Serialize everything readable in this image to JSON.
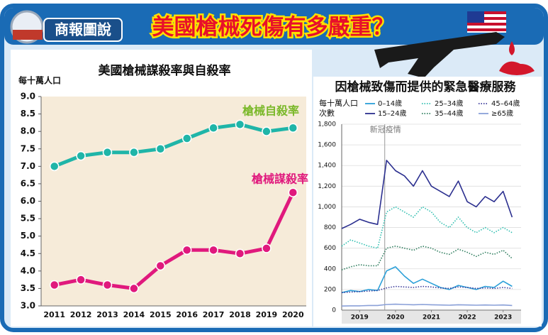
{
  "header": {
    "badge": "商報圖說",
    "title": "美國槍械死傷有多嚴重？"
  },
  "chart_data": [
    {
      "type": "line",
      "title": "美國槍械謀殺率與自殺率",
      "ylabel": "每十萬人口",
      "categories": [
        "2011",
        "2012",
        "2013",
        "2014",
        "2015",
        "2016",
        "2017",
        "2018",
        "2019",
        "2020"
      ],
      "series": [
        {
          "name": "槍械自殺率",
          "color": "#1fb5a8",
          "label_color": "#7ab829",
          "values": [
            7.0,
            7.3,
            7.4,
            7.4,
            7.5,
            7.8,
            8.1,
            8.2,
            8.0,
            8.1
          ]
        },
        {
          "name": "槍械謀殺率",
          "color": "#e0197d",
          "label_color": "#e0197d",
          "values": [
            3.6,
            3.75,
            3.6,
            3.5,
            4.15,
            4.6,
            4.6,
            4.5,
            4.65,
            6.25
          ]
        }
      ],
      "ylim": [
        3,
        9
      ],
      "yticks": [
        {
          "value": 3,
          "label": "3.0"
        },
        3.5,
        {
          "value": 4,
          "label": "4.0"
        },
        4.5,
        {
          "value": 5,
          "label": "5.0"
        },
        5.5,
        {
          "value": 6,
          "label": "6.0"
        },
        6.5,
        {
          "value": 7,
          "label": "7.0"
        },
        7.5,
        {
          "value": 8,
          "label": "8.0"
        },
        8.5,
        {
          "value": 9,
          "label": "9.0"
        }
      ],
      "grid": false
    },
    {
      "type": "line",
      "title": "因槍械致傷而提供的緊急醫療服務",
      "ylabel": [
        "每十萬人口",
        "次數"
      ],
      "x": [
        2019,
        2019.25,
        2019.5,
        2019.75,
        2020,
        2020.25,
        2020.5,
        2020.75,
        2021,
        2021.25,
        2021.5,
        2021.75,
        2022,
        2022.25,
        2022.5,
        2022.75,
        2023,
        2023.25,
        2023.5,
        2023.75
      ],
      "xlim": [
        2019,
        2024
      ],
      "xticks": [
        {
          "value": 2019.5,
          "label": "2019"
        },
        {
          "value": 2020.5,
          "label": "2020"
        },
        {
          "value": 2021.5,
          "label": "2021"
        },
        {
          "value": 2022.5,
          "label": "2022"
        },
        {
          "value": 2023.5,
          "label": "2023"
        }
      ],
      "series": [
        {
          "name": "0–14歲",
          "color": "#2a9fd8",
          "dash": false,
          "values": [
            170,
            190,
            180,
            200,
            190,
            380,
            420,
            330,
            260,
            300,
            260,
            220,
            200,
            240,
            220,
            200,
            230,
            220,
            280,
            230
          ]
        },
        {
          "name": "15–24歲",
          "color": "#2b2f8f",
          "dash": false,
          "values": [
            790,
            830,
            880,
            850,
            830,
            1450,
            1350,
            1300,
            1200,
            1350,
            1200,
            1150,
            1100,
            1250,
            1050,
            1000,
            1100,
            1050,
            1150,
            900
          ]
        },
        {
          "name": "25–34歲",
          "color": "#2fbfb0",
          "dash": true,
          "values": [
            620,
            680,
            650,
            620,
            600,
            950,
            1000,
            950,
            900,
            1000,
            950,
            850,
            800,
            900,
            800,
            750,
            800,
            750,
            800,
            750
          ]
        },
        {
          "name": "35–44歲",
          "color": "#2e7d5e",
          "dash": true,
          "values": [
            390,
            420,
            440,
            430,
            430,
            600,
            620,
            600,
            580,
            620,
            600,
            560,
            540,
            590,
            560,
            520,
            560,
            540,
            580,
            500
          ]
        },
        {
          "name": "45–64歲",
          "color": "#3a3a9a",
          "dash": true,
          "values": [
            170,
            175,
            180,
            185,
            190,
            215,
            230,
            225,
            220,
            230,
            225,
            215,
            210,
            225,
            220,
            210,
            215,
            210,
            220,
            210
          ]
        },
        {
          "name": "≥65歲",
          "color": "#8aa0d8",
          "dash": false,
          "values": [
            40,
            42,
            42,
            45,
            45,
            55,
            58,
            55,
            52,
            55,
            52,
            50,
            48,
            52,
            50,
            48,
            50,
            48,
            50,
            45
          ]
        }
      ],
      "ylim": [
        0,
        1800
      ],
      "yticks": [
        0,
        200,
        400,
        600,
        800,
        {
          "value": 1000,
          "label": "1,000"
        },
        {
          "value": 1200,
          "label": "1,200"
        },
        {
          "value": 1400,
          "label": "1,400"
        },
        {
          "value": 1600,
          "label": "1,600"
        },
        {
          "value": 1800,
          "label": "1,800"
        }
      ],
      "grid": true,
      "annotations": [
        {
          "text": "新冠疫情",
          "x": 2020.2
        }
      ]
    }
  ]
}
